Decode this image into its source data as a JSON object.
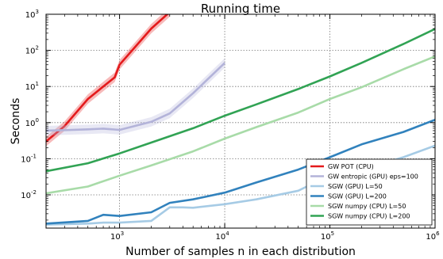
{
  "chart_data": {
    "type": "line",
    "title": "Running time",
    "xlabel": "Number of samples n in each distribution",
    "ylabel": "Seconds",
    "xscale": "log",
    "yscale": "log",
    "xlim": [
      200,
      1000000
    ],
    "ylim": [
      0.0012,
      1000
    ],
    "x_ticks": [
      {
        "label": "10",
        "exp": "3",
        "value": 1000
      },
      {
        "label": "10",
        "exp": "4",
        "value": 10000
      },
      {
        "label": "10",
        "exp": "5",
        "value": 100000
      },
      {
        "label": "10",
        "exp": "6",
        "value": 1000000
      }
    ],
    "y_ticks": [
      {
        "label": "10",
        "exp": "-2",
        "value": 0.01
      },
      {
        "label": "10",
        "exp": "-1",
        "value": 0.1
      },
      {
        "label": "10",
        "exp": "0",
        "value": 1
      },
      {
        "label": "10",
        "exp": "1",
        "value": 10
      },
      {
        "label": "10",
        "exp": "2",
        "value": 100
      },
      {
        "label": "10",
        "exp": "3",
        "value": 1000
      }
    ],
    "grid": true,
    "legend_position": "bottom-right",
    "series": [
      {
        "name": "GW POT (CPU)",
        "color": "#e41a1c",
        "band": true,
        "x": [
          200,
          300,
          500,
          700,
          900,
          1000,
          2000,
          3000
        ],
        "y": [
          0.3,
          0.8,
          4.5,
          10,
          18,
          40,
          400,
          1150
        ]
      },
      {
        "name": "GW entropic (GPU) eps=100",
        "color": "#b3b3d9",
        "band": true,
        "x": [
          200,
          300,
          500,
          700,
          1000,
          2000,
          3000,
          5000,
          10000
        ],
        "y": [
          0.6,
          0.62,
          0.65,
          0.68,
          0.63,
          1.05,
          1.8,
          6.5,
          45
        ]
      },
      {
        "name": "SGW (GPU) L=50",
        "color": "#a6cbe5",
        "x": [
          200,
          500,
          700,
          1000,
          2000,
          3000,
          4000,
          5000,
          10000,
          20000,
          50000,
          70000,
          100000,
          200000,
          500000,
          1000000
        ],
        "y": [
          0.0015,
          0.0016,
          0.0017,
          0.0017,
          0.0019,
          0.0045,
          0.0045,
          0.0044,
          0.0055,
          0.0075,
          0.013,
          0.021,
          0.03,
          0.05,
          0.11,
          0.23
        ]
      },
      {
        "name": "SGW (GPU) L=200",
        "color": "#3182bd",
        "x": [
          200,
          500,
          700,
          1000,
          2000,
          3000,
          5000,
          10000,
          20000,
          50000,
          100000,
          200000,
          500000,
          1000000
        ],
        "y": [
          0.0016,
          0.0019,
          0.0028,
          0.0026,
          0.0033,
          0.006,
          0.0075,
          0.0115,
          0.022,
          0.05,
          0.11,
          0.25,
          0.55,
          1.2
        ]
      },
      {
        "name": "SGW numpy (CPU) L=50",
        "color": "#a8dba8",
        "x": [
          200,
          500,
          1000,
          2000,
          5000,
          10000,
          20000,
          50000,
          100000,
          200000,
          500000,
          1000000
        ],
        "y": [
          0.011,
          0.017,
          0.034,
          0.065,
          0.16,
          0.36,
          0.75,
          1.9,
          4.5,
          9.5,
          30,
          68
        ]
      },
      {
        "name": "SGW numpy (CPU) L=200",
        "color": "#31a354",
        "x": [
          200,
          500,
          1000,
          2000,
          5000,
          10000,
          20000,
          50000,
          100000,
          200000,
          500000,
          1000000
        ],
        "y": [
          0.045,
          0.075,
          0.14,
          0.28,
          0.7,
          1.55,
          3.2,
          8.5,
          19,
          45,
          150,
          390
        ]
      }
    ]
  }
}
